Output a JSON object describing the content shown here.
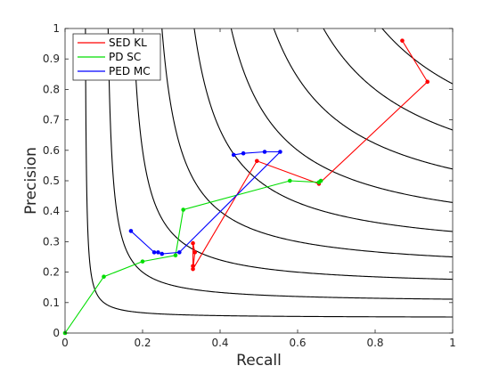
{
  "chart_data": {
    "type": "line",
    "title": "",
    "xlabel": "Recall",
    "ylabel": "Precision",
    "xlim": [
      0,
      1
    ],
    "ylim": [
      0,
      1
    ],
    "x_ticks": [
      "0",
      "0.2",
      "0.4",
      "0.6",
      "0.8",
      "1"
    ],
    "y_ticks": [
      "0",
      "0.1",
      "0.2",
      "0.3",
      "0.4",
      "0.5",
      "0.6",
      "0.7",
      "0.8",
      "0.9",
      "1"
    ],
    "grid": false,
    "legend_position": "top-left",
    "contours": {
      "type": "F1 iso-curves",
      "color": "#000000",
      "levels": [
        0.1,
        0.2,
        0.3,
        0.4,
        0.5,
        0.6,
        0.7,
        0.8,
        0.9
      ]
    },
    "series": [
      {
        "name": "SED KL",
        "color": "#ff0000",
        "x": [
          0.87,
          0.935,
          0.655,
          0.495,
          0.33,
          0.335,
          0.33,
          0.33
        ],
        "y": [
          0.96,
          0.825,
          0.49,
          0.565,
          0.21,
          0.265,
          0.295,
          0.22
        ]
      },
      {
        "name": "PD SC",
        "color": "#00dd00",
        "x": [
          0.0,
          0.1,
          0.2,
          0.285,
          0.305,
          0.58,
          0.655,
          0.66
        ],
        "y": [
          0.0,
          0.185,
          0.235,
          0.255,
          0.405,
          0.5,
          0.495,
          0.5
        ]
      },
      {
        "name": "PED MC",
        "color": "#0000ff",
        "x": [
          0.17,
          0.23,
          0.24,
          0.25,
          0.295,
          0.555,
          0.515,
          0.46,
          0.435
        ],
        "y": [
          0.335,
          0.265,
          0.265,
          0.26,
          0.265,
          0.595,
          0.595,
          0.59,
          0.585
        ]
      }
    ]
  }
}
